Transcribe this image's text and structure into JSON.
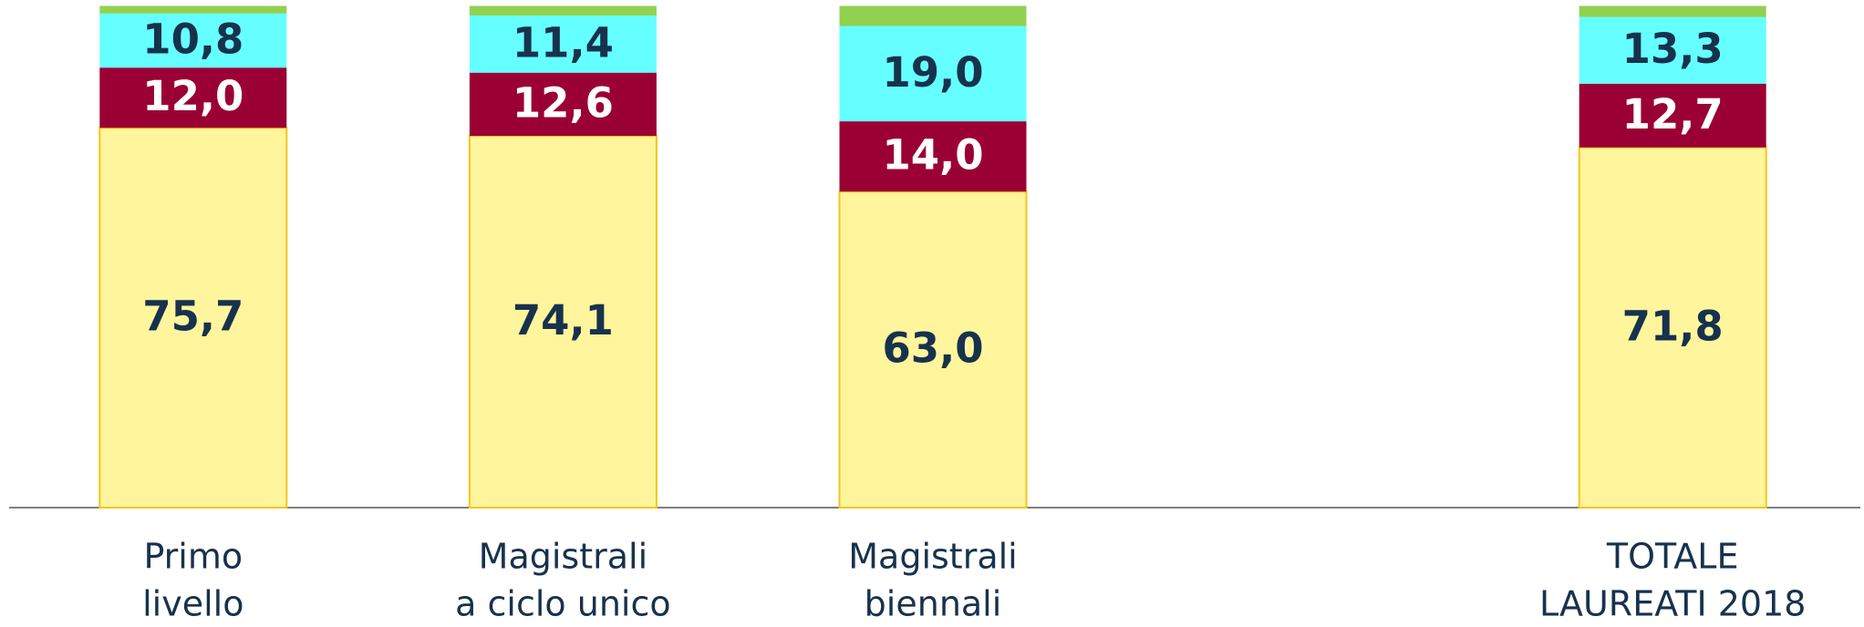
{
  "chart_data": {
    "type": "stacked_bar",
    "categories": [
      [
        "Primo",
        "livello"
      ],
      [
        "Magistrali",
        "a ciclo unico"
      ],
      [
        "Magistrali",
        "biennali"
      ],
      null,
      [
        "TOTALE",
        "LAUREATI 2018"
      ]
    ],
    "ylim": [
      0,
      100
    ],
    "series": [
      {
        "color": "#fff59d",
        "values": [
          75.7,
          74.1,
          63.0,
          null,
          71.8
        ],
        "value_labels": [
          "75,7",
          "74,1",
          "63,0",
          null,
          "71,8"
        ]
      },
      {
        "color": "#9b0034",
        "values": [
          12.0,
          12.6,
          14.0,
          null,
          12.7
        ],
        "value_labels": [
          "12,0",
          "12,6",
          "14,0",
          null,
          "12,7"
        ]
      },
      {
        "color": "#66ffff",
        "values": [
          10.8,
          11.4,
          19.0,
          null,
          13.3
        ],
        "value_labels": [
          "10,8",
          "11,4",
          "19,0",
          null,
          "13,3"
        ]
      },
      {
        "color": "#92d050",
        "values": [
          1.5,
          1.9,
          4.0,
          null,
          2.2
        ]
      }
    ]
  }
}
